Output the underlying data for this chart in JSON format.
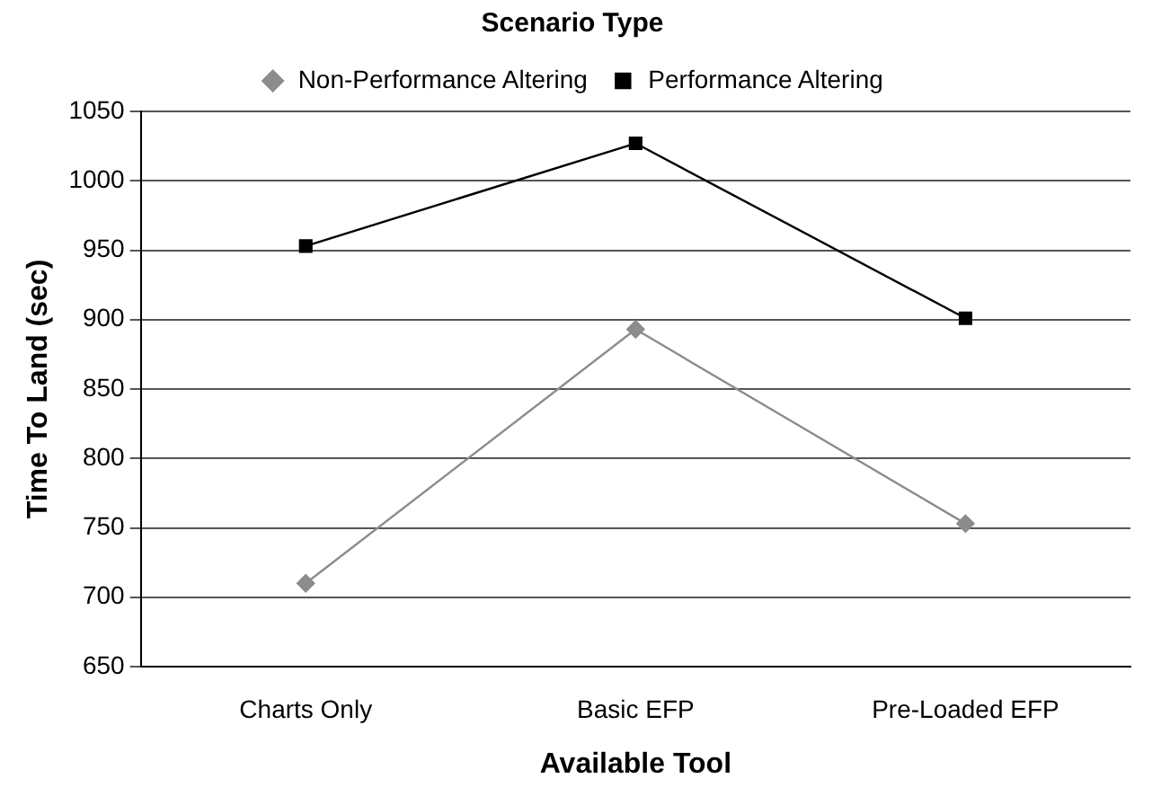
{
  "chart_data": {
    "type": "line",
    "legend_title": "Scenario Type",
    "xlabel": "Available Tool",
    "ylabel": "Time To Land (sec)",
    "categories": [
      "Charts Only",
      "Basic EFP",
      "Pre-Loaded EFP"
    ],
    "series": [
      {
        "name": "Non-Performance Altering",
        "color": "#8c8c8c",
        "marker": "diamond",
        "values": [
          710,
          893,
          753
        ]
      },
      {
        "name": "Performance Altering",
        "color": "#000000",
        "marker": "square",
        "values": [
          953,
          1027,
          901
        ]
      }
    ],
    "ylim": [
      650,
      1050
    ],
    "yticks": [
      650,
      700,
      750,
      800,
      850,
      900,
      950,
      1000,
      1050
    ],
    "grid": "y",
    "legend": "top"
  }
}
